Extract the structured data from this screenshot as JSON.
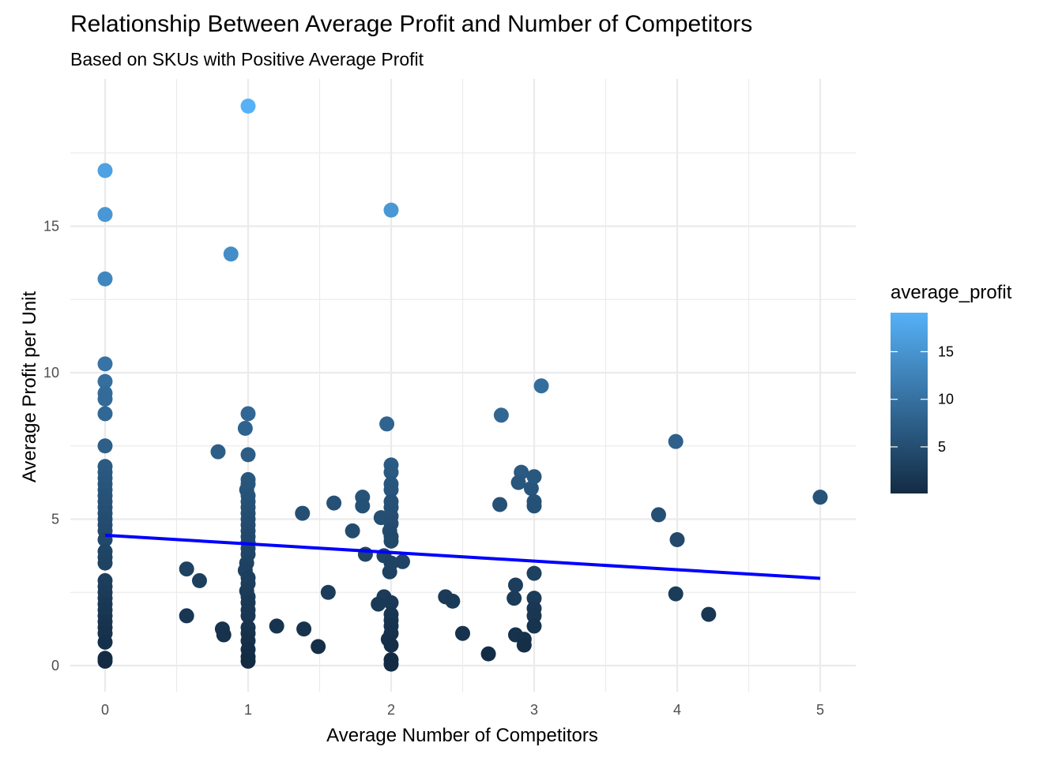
{
  "chart_data": {
    "type": "scatter",
    "title": "Relationship Between Average Profit and Number of Competitors",
    "subtitle": "Based on SKUs with Positive Average Profit",
    "xlabel": "Average Number of Competitors",
    "ylabel": "Average Profit per Unit",
    "xlim": [
      -0.2,
      5.2
    ],
    "ylim": [
      -0.7,
      19.4
    ],
    "x_ticks": [
      0,
      1,
      2,
      3,
      4,
      5
    ],
    "x_tick_labels": [
      "0",
      "1",
      "2",
      "3",
      "4",
      "5"
    ],
    "y_ticks": [
      0,
      5,
      10,
      15
    ],
    "y_tick_labels": [
      "0",
      "5",
      "10",
      "15"
    ],
    "grid": true,
    "color_variable": "average_profit",
    "color_scale": {
      "low_color": "#132B43",
      "high_color": "#56B1F7",
      "min": 0.1,
      "max": 19.1,
      "breaks": [
        5,
        10,
        15
      ],
      "break_labels": [
        "5",
        "10",
        "15"
      ]
    },
    "legend_position": "right",
    "trend_line": {
      "x": [
        0,
        5
      ],
      "y": [
        4.45,
        2.98
      ],
      "color": "#0000FF"
    },
    "points": [
      {
        "x": 0,
        "y": 16.9
      },
      {
        "x": 0,
        "y": 15.4
      },
      {
        "x": 0,
        "y": 13.2
      },
      {
        "x": 0,
        "y": 10.3
      },
      {
        "x": 0,
        "y": 9.7
      },
      {
        "x": 0,
        "y": 9.3
      },
      {
        "x": 0,
        "y": 9.1
      },
      {
        "x": 0,
        "y": 8.6
      },
      {
        "x": 0,
        "y": 7.5
      },
      {
        "x": 0,
        "y": 6.8
      },
      {
        "x": 0,
        "y": 6.6
      },
      {
        "x": 0,
        "y": 6.4
      },
      {
        "x": 0,
        "y": 6.2
      },
      {
        "x": 0,
        "y": 6.0
      },
      {
        "x": 0,
        "y": 5.8
      },
      {
        "x": 0,
        "y": 5.6
      },
      {
        "x": 0,
        "y": 5.4
      },
      {
        "x": 0,
        "y": 5.2
      },
      {
        "x": 0,
        "y": 5.0
      },
      {
        "x": 0,
        "y": 4.8
      },
      {
        "x": 0,
        "y": 4.6
      },
      {
        "x": 0,
        "y": 4.3
      },
      {
        "x": 0,
        "y": 3.9
      },
      {
        "x": 0,
        "y": 3.7
      },
      {
        "x": 0,
        "y": 3.5
      },
      {
        "x": 0,
        "y": 2.9
      },
      {
        "x": 0,
        "y": 2.7
      },
      {
        "x": 0,
        "y": 2.5
      },
      {
        "x": 0,
        "y": 2.3
      },
      {
        "x": 0,
        "y": 2.1
      },
      {
        "x": 0,
        "y": 1.9
      },
      {
        "x": 0,
        "y": 1.7
      },
      {
        "x": 0,
        "y": 1.5
      },
      {
        "x": 0,
        "y": 1.3
      },
      {
        "x": 0,
        "y": 1.1
      },
      {
        "x": 0,
        "y": 0.8
      },
      {
        "x": 0,
        "y": 0.25
      },
      {
        "x": 0,
        "y": 0.15
      },
      {
        "x": 1,
        "y": 19.1
      },
      {
        "x": 0.88,
        "y": 14.05
      },
      {
        "x": 1,
        "y": 8.6
      },
      {
        "x": 0.98,
        "y": 8.1
      },
      {
        "x": 1,
        "y": 7.2
      },
      {
        "x": 0.79,
        "y": 7.3
      },
      {
        "x": 1,
        "y": 6.35
      },
      {
        "x": 1,
        "y": 6.2
      },
      {
        "x": 0.99,
        "y": 6.0
      },
      {
        "x": 1,
        "y": 5.8
      },
      {
        "x": 1,
        "y": 5.6
      },
      {
        "x": 1,
        "y": 5.4
      },
      {
        "x": 1,
        "y": 5.2
      },
      {
        "x": 1,
        "y": 5.0
      },
      {
        "x": 1,
        "y": 4.8
      },
      {
        "x": 1,
        "y": 4.6
      },
      {
        "x": 1,
        "y": 4.4
      },
      {
        "x": 1,
        "y": 4.2
      },
      {
        "x": 1,
        "y": 4.0
      },
      {
        "x": 1,
        "y": 3.8
      },
      {
        "x": 0.99,
        "y": 3.5
      },
      {
        "x": 0.98,
        "y": 3.25
      },
      {
        "x": 1,
        "y": 3.0
      },
      {
        "x": 1,
        "y": 2.8
      },
      {
        "x": 0.99,
        "y": 2.55
      },
      {
        "x": 1,
        "y": 2.35
      },
      {
        "x": 1,
        "y": 2.15
      },
      {
        "x": 1,
        "y": 1.9
      },
      {
        "x": 1,
        "y": 1.7
      },
      {
        "x": 1,
        "y": 1.3
      },
      {
        "x": 1,
        "y": 1.1
      },
      {
        "x": 1,
        "y": 0.85
      },
      {
        "x": 1,
        "y": 0.55
      },
      {
        "x": 1,
        "y": 0.3
      },
      {
        "x": 1,
        "y": 0.15
      },
      {
        "x": 0.57,
        "y": 3.3
      },
      {
        "x": 0.66,
        "y": 2.9
      },
      {
        "x": 0.57,
        "y": 1.7
      },
      {
        "x": 0.82,
        "y": 1.25
      },
      {
        "x": 0.83,
        "y": 1.05
      },
      {
        "x": 1.2,
        "y": 1.35
      },
      {
        "x": 1.39,
        "y": 1.25
      },
      {
        "x": 1.49,
        "y": 0.65
      },
      {
        "x": 1.38,
        "y": 5.2
      },
      {
        "x": 1.56,
        "y": 2.5
      },
      {
        "x": 1.6,
        "y": 5.55
      },
      {
        "x": 1.73,
        "y": 4.6
      },
      {
        "x": 1.8,
        "y": 5.75
      },
      {
        "x": 1.8,
        "y": 5.45
      },
      {
        "x": 1.82,
        "y": 3.8
      },
      {
        "x": 1.97,
        "y": 8.25
      },
      {
        "x": 2,
        "y": 15.55
      },
      {
        "x": 2,
        "y": 6.85
      },
      {
        "x": 2,
        "y": 6.6
      },
      {
        "x": 2,
        "y": 6.2
      },
      {
        "x": 2,
        "y": 6.0
      },
      {
        "x": 2,
        "y": 5.6
      },
      {
        "x": 2,
        "y": 5.4
      },
      {
        "x": 2,
        "y": 5.1
      },
      {
        "x": 1.93,
        "y": 5.05
      },
      {
        "x": 2,
        "y": 4.85
      },
      {
        "x": 1.99,
        "y": 4.6
      },
      {
        "x": 2,
        "y": 4.4
      },
      {
        "x": 2,
        "y": 4.25
      },
      {
        "x": 1.95,
        "y": 3.75
      },
      {
        "x": 2.08,
        "y": 3.55
      },
      {
        "x": 1.99,
        "y": 3.2
      },
      {
        "x": 2,
        "y": 3.5
      },
      {
        "x": 1.95,
        "y": 2.35
      },
      {
        "x": 2,
        "y": 2.15
      },
      {
        "x": 1.91,
        "y": 2.1
      },
      {
        "x": 2,
        "y": 1.75
      },
      {
        "x": 2,
        "y": 1.55
      },
      {
        "x": 2,
        "y": 1.35
      },
      {
        "x": 2,
        "y": 1.1
      },
      {
        "x": 1.98,
        "y": 0.9
      },
      {
        "x": 2,
        "y": 0.7
      },
      {
        "x": 2,
        "y": 0.2
      },
      {
        "x": 2,
        "y": 0.05
      },
      {
        "x": 2.38,
        "y": 2.35
      },
      {
        "x": 2.43,
        "y": 2.2
      },
      {
        "x": 2.5,
        "y": 1.1
      },
      {
        "x": 2.68,
        "y": 0.4
      },
      {
        "x": 2.77,
        "y": 8.55
      },
      {
        "x": 2.76,
        "y": 5.5
      },
      {
        "x": 2.87,
        "y": 2.75
      },
      {
        "x": 2.86,
        "y": 2.3
      },
      {
        "x": 2.87,
        "y": 1.05
      },
      {
        "x": 2.93,
        "y": 0.9
      },
      {
        "x": 2.93,
        "y": 0.7
      },
      {
        "x": 2.91,
        "y": 6.6
      },
      {
        "x": 2.89,
        "y": 6.25
      },
      {
        "x": 2.98,
        "y": 6.05
      },
      {
        "x": 3,
        "y": 6.45
      },
      {
        "x": 3,
        "y": 5.6
      },
      {
        "x": 3,
        "y": 5.45
      },
      {
        "x": 3,
        "y": 3.15
      },
      {
        "x": 3,
        "y": 2.3
      },
      {
        "x": 3,
        "y": 1.95
      },
      {
        "x": 3,
        "y": 1.7
      },
      {
        "x": 3,
        "y": 1.35
      },
      {
        "x": 3.05,
        "y": 9.55
      },
      {
        "x": 3.87,
        "y": 5.15
      },
      {
        "x": 3.99,
        "y": 7.65
      },
      {
        "x": 4,
        "y": 4.3
      },
      {
        "x": 3.99,
        "y": 2.45
      },
      {
        "x": 4.22,
        "y": 1.75
      },
      {
        "x": 5,
        "y": 5.75
      }
    ]
  }
}
